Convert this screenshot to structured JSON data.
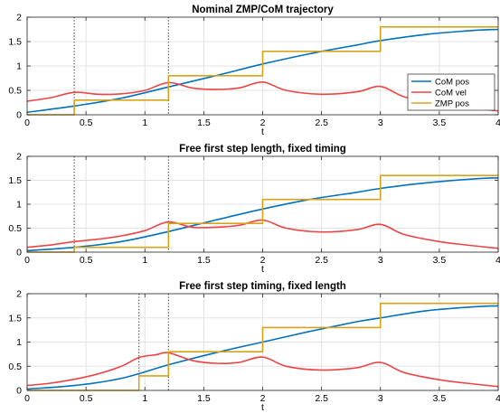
{
  "chart_data": [
    {
      "type": "line",
      "title": "Nominal ZMP/CoM trajectory",
      "xlabel": "t",
      "ylabel": "",
      "xlim": [
        0,
        4
      ],
      "ylim": [
        0,
        2
      ],
      "xticks": [
        "0",
        "0.5",
        "1",
        "1.5",
        "2",
        "2.5",
        "3",
        "3.5",
        "4"
      ],
      "yticks": [
        "0",
        "0.5",
        "1",
        "1.5",
        "2"
      ],
      "grid": true,
      "legend": "right",
      "vlines": [
        0.4,
        1.2
      ],
      "series": [
        {
          "name": "CoM pos",
          "color": "#0072BD",
          "x": [
            0,
            0.4,
            0.8,
            1.2,
            1.6,
            2.0,
            2.4,
            2.8,
            3.0,
            3.4,
            3.8,
            4.0
          ],
          "y": [
            0.05,
            0.18,
            0.34,
            0.57,
            0.8,
            1.04,
            1.25,
            1.43,
            1.52,
            1.65,
            1.73,
            1.75
          ]
        },
        {
          "name": "CoM vel",
          "color": "#EE4444",
          "x": [
            0,
            0.2,
            0.4,
            0.6,
            0.8,
            1.0,
            1.2,
            1.4,
            1.6,
            1.8,
            2.0,
            2.2,
            2.5,
            2.8,
            3.0,
            3.2,
            3.5,
            3.8,
            4.0
          ],
          "y": [
            0.28,
            0.35,
            0.46,
            0.42,
            0.43,
            0.5,
            0.66,
            0.55,
            0.52,
            0.55,
            0.67,
            0.5,
            0.42,
            0.47,
            0.58,
            0.37,
            0.22,
            0.13,
            0.08
          ]
        },
        {
          "name": "ZMP pos",
          "color": "#D9A21B",
          "step": true,
          "x": [
            0,
            0.4,
            1.2,
            2.0,
            3.0,
            4.0
          ],
          "y": [
            0,
            0.3,
            0.8,
            1.3,
            1.8,
            1.8
          ]
        }
      ]
    },
    {
      "type": "line",
      "title": "Free first step length, fixed timing",
      "xlabel": "t",
      "ylabel": "",
      "xlim": [
        0,
        4
      ],
      "ylim": [
        0,
        2
      ],
      "xticks": [
        "0",
        "0.5",
        "1",
        "1.5",
        "2",
        "2.5",
        "3",
        "3.5",
        "4"
      ],
      "yticks": [
        "0",
        "0.5",
        "1",
        "1.5",
        "2"
      ],
      "grid": true,
      "vlines": [
        0.4,
        1.2
      ],
      "series": [
        {
          "color": "#0072BD",
          "x": [
            0,
            0.4,
            0.8,
            1.2,
            1.6,
            2.0,
            2.4,
            2.8,
            3.0,
            3.4,
            3.8,
            4.0
          ],
          "y": [
            0.03,
            0.1,
            0.22,
            0.43,
            0.67,
            0.9,
            1.1,
            1.25,
            1.33,
            1.45,
            1.53,
            1.55
          ]
        },
        {
          "color": "#EE4444",
          "x": [
            0,
            0.2,
            0.4,
            0.6,
            0.8,
            1.0,
            1.2,
            1.4,
            1.6,
            1.8,
            2.0,
            2.2,
            2.5,
            2.8,
            3.0,
            3.2,
            3.5,
            3.8,
            4.0
          ],
          "y": [
            0.1,
            0.15,
            0.22,
            0.27,
            0.34,
            0.45,
            0.63,
            0.52,
            0.52,
            0.56,
            0.67,
            0.5,
            0.42,
            0.47,
            0.58,
            0.37,
            0.22,
            0.13,
            0.08
          ]
        },
        {
          "color": "#D9A21B",
          "step": true,
          "x": [
            0,
            0.4,
            1.2,
            2.0,
            3.0,
            4.0
          ],
          "y": [
            0,
            0.1,
            0.6,
            1.1,
            1.6,
            1.6
          ]
        }
      ]
    },
    {
      "type": "line",
      "title": "Free first step timing, fixed length",
      "xlabel": "t",
      "ylabel": "",
      "xlim": [
        0,
        4
      ],
      "ylim": [
        0,
        2
      ],
      "xticks": [
        "0",
        "0.5",
        "1",
        "1.5",
        "2",
        "2.5",
        "3",
        "3.5",
        "4"
      ],
      "yticks": [
        "0",
        "0.5",
        "1",
        "1.5",
        "2"
      ],
      "grid": true,
      "vlines": [
        0.95,
        1.2
      ],
      "series": [
        {
          "color": "#0072BD",
          "x": [
            0,
            0.4,
            0.8,
            1.2,
            1.6,
            2.0,
            2.4,
            2.8,
            3.0,
            3.4,
            3.8,
            4.0
          ],
          "y": [
            0.03,
            0.1,
            0.25,
            0.53,
            0.78,
            1.0,
            1.22,
            1.42,
            1.5,
            1.65,
            1.73,
            1.75
          ]
        },
        {
          "color": "#EE4444",
          "x": [
            0,
            0.2,
            0.4,
            0.6,
            0.8,
            0.95,
            1.1,
            1.2,
            1.4,
            1.6,
            1.8,
            2.0,
            2.2,
            2.5,
            2.8,
            3.0,
            3.2,
            3.5,
            3.8,
            4.0
          ],
          "y": [
            0.1,
            0.15,
            0.23,
            0.34,
            0.5,
            0.68,
            0.74,
            0.78,
            0.62,
            0.56,
            0.58,
            0.69,
            0.5,
            0.42,
            0.47,
            0.58,
            0.37,
            0.22,
            0.13,
            0.08
          ]
        },
        {
          "color": "#D9A21B",
          "step": true,
          "x": [
            0,
            0.95,
            1.2,
            2.0,
            3.0,
            4.0
          ],
          "y": [
            0,
            0.3,
            0.8,
            1.3,
            1.8,
            1.8
          ]
        }
      ]
    }
  ]
}
